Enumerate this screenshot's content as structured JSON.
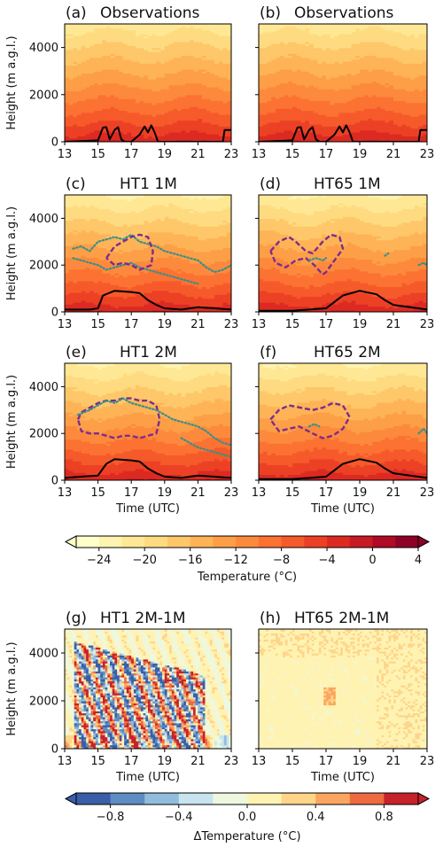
{
  "chart_data": [
    {
      "type": "heatmap",
      "panel": "a",
      "panel_label": "(a)",
      "title": "Observations",
      "ylabel": "Height (m a.g.l.)",
      "xlabel": "",
      "xlim": [
        13,
        23
      ],
      "ylim": [
        0,
        5000
      ],
      "xticks": [
        "13",
        "15",
        "17",
        "19",
        "21",
        "23"
      ],
      "yticks": [
        "0",
        "2000",
        "4000"
      ],
      "field": "Temperature (°C)",
      "surface_range": [
        -4,
        0
      ],
      "top_range": [
        -22,
        -20
      ],
      "contours": [
        {
          "style": "solid",
          "color": "#000000",
          "x": [
            13,
            14,
            15,
            15.3,
            15.5,
            15.7,
            16,
            16.2,
            16.4,
            16.6,
            17,
            17.5,
            17.8,
            18,
            18.2,
            18.4,
            18.6,
            19,
            20,
            22.5,
            22.6,
            23
          ],
          "y": [
            0,
            30,
            60,
            600,
            620,
            100,
            500,
            620,
            100,
            0,
            0,
            300,
            650,
            400,
            700,
            400,
            0,
            0,
            0,
            0,
            500,
            500
          ]
        }
      ]
    },
    {
      "type": "heatmap",
      "panel": "b",
      "panel_label": "(b)",
      "title": "Observations",
      "ylabel": "",
      "xlabel": "",
      "xlim": [
        13,
        23
      ],
      "ylim": [
        0,
        5000
      ],
      "xticks": [
        "13",
        "15",
        "17",
        "19",
        "21",
        "23"
      ],
      "yticks": [],
      "field": "Temperature (°C)",
      "surface_range": [
        -4,
        0
      ],
      "top_range": [
        -22,
        -20
      ],
      "contours": [
        {
          "style": "solid",
          "color": "#000000",
          "x": [
            13,
            14,
            15,
            15.3,
            15.5,
            15.7,
            16,
            16.2,
            16.4,
            16.6,
            17,
            17.5,
            17.8,
            18,
            18.2,
            18.4,
            18.6,
            19,
            20,
            22.5,
            22.6,
            23
          ],
          "y": [
            0,
            30,
            60,
            600,
            620,
            100,
            500,
            620,
            100,
            0,
            0,
            300,
            650,
            400,
            700,
            400,
            0,
            0,
            0,
            0,
            500,
            500
          ]
        }
      ]
    },
    {
      "type": "heatmap",
      "panel": "c",
      "panel_label": "(c)",
      "title": "HT1 1M",
      "ylabel": "Height (m a.g.l.)",
      "xlabel": "",
      "xlim": [
        13,
        23
      ],
      "ylim": [
        0,
        5000
      ],
      "xticks": [
        "13",
        "15",
        "17",
        "19",
        "21",
        "23"
      ],
      "yticks": [
        "0",
        "2000",
        "4000"
      ],
      "field": "Temperature (°C)",
      "surface_range": [
        -4,
        0
      ],
      "top_range": [
        -24,
        -20
      ],
      "contours": [
        {
          "style": "solid",
          "color": "#000000",
          "x": [
            13,
            14.5,
            15,
            15.3,
            16,
            17,
            17.5,
            18,
            18.5,
            19,
            20,
            21,
            22,
            23
          ],
          "y": [
            100,
            100,
            150,
            700,
            900,
            850,
            800,
            500,
            300,
            150,
            100,
            200,
            150,
            100
          ]
        },
        {
          "style": "dotted",
          "color": "#3a8f8a",
          "x": [
            13.5,
            14,
            14.5,
            15,
            15.5,
            16,
            16.5,
            17,
            17.5,
            18,
            18.5,
            19,
            19.5,
            20,
            20.5,
            21,
            21.5,
            22,
            22.5,
            23
          ],
          "y": [
            2700,
            2800,
            2600,
            3000,
            3100,
            3200,
            3100,
            3300,
            3000,
            2900,
            2800,
            2600,
            2500,
            2400,
            2300,
            2200,
            1900,
            1700,
            1800,
            2000
          ]
        },
        {
          "style": "dotted",
          "color": "#3a8f8a",
          "x": [
            13.5,
            14,
            14.5,
            15,
            15.5,
            16,
            16.5,
            17,
            17.5,
            18,
            18.5,
            19,
            19.5,
            20,
            20.5,
            21
          ],
          "y": [
            2300,
            2200,
            2100,
            2000,
            1800,
            1900,
            2000,
            2100,
            1900,
            1800,
            1700,
            1600,
            1500,
            1400,
            1300,
            1200
          ]
        },
        {
          "style": "dashed",
          "color": "#7b2d8e",
          "x": [
            15.5,
            16,
            16.5,
            17,
            17.5,
            18,
            18.3,
            18.2,
            17.5,
            17,
            16.5,
            16,
            15.5
          ],
          "y": [
            2300,
            2800,
            3000,
            3200,
            3300,
            3200,
            2600,
            2000,
            1800,
            2000,
            2100,
            2000,
            2300
          ]
        }
      ]
    },
    {
      "type": "heatmap",
      "panel": "d",
      "panel_label": "(d)",
      "title": "HT65 1M",
      "ylabel": "",
      "xlabel": "",
      "xlim": [
        13,
        23
      ],
      "ylim": [
        0,
        5000
      ],
      "xticks": [
        "13",
        "15",
        "17",
        "19",
        "21",
        "23"
      ],
      "yticks": [],
      "field": "Temperature (°C)",
      "surface_range": [
        -4,
        0
      ],
      "top_range": [
        -24,
        -20
      ],
      "contours": [
        {
          "style": "solid",
          "color": "#000000",
          "x": [
            13,
            15,
            16,
            17,
            18,
            19,
            20,
            20.5,
            21,
            22,
            23
          ],
          "y": [
            50,
            50,
            100,
            150,
            700,
            900,
            750,
            500,
            300,
            200,
            100
          ]
        },
        {
          "style": "dashed",
          "color": "#7b2d8e",
          "x": [
            13.7,
            14.2,
            14.8,
            15.2,
            15.8,
            16.2,
            16.8,
            17.3,
            17.8,
            18,
            17.5,
            17,
            16.8,
            16.3,
            15.8,
            15.2,
            14.6,
            14,
            13.7
          ],
          "y": [
            2600,
            3000,
            3200,
            3000,
            2600,
            2500,
            3000,
            3300,
            3200,
            2700,
            2200,
            1700,
            1600,
            2000,
            2300,
            2200,
            1900,
            2100,
            2600
          ]
        },
        {
          "style": "dotted",
          "color": "#3a8f8a",
          "x": [
            16,
            16.4,
            16.8,
            17
          ],
          "y": [
            2200,
            2300,
            2200,
            2300
          ]
        },
        {
          "style": "dotted",
          "color": "#3a8f8a",
          "x": [
            20.5,
            20.7
          ],
          "y": [
            2400,
            2500
          ]
        },
        {
          "style": "dotted",
          "color": "#3a8f8a",
          "x": [
            22.5,
            22.8,
            23
          ],
          "y": [
            2000,
            2100,
            2000
          ]
        }
      ]
    },
    {
      "type": "heatmap",
      "panel": "e",
      "panel_label": "(e)",
      "title": "HT1 2M",
      "ylabel": "Height (m a.g.l.)",
      "xlabel": "Time (UTC)",
      "xlim": [
        13,
        23
      ],
      "ylim": [
        0,
        5000
      ],
      "xticks": [
        "13",
        "15",
        "17",
        "19",
        "21",
        "23"
      ],
      "yticks": [
        "0",
        "2000",
        "4000"
      ],
      "field": "Temperature (°C)",
      "surface_range": [
        -4,
        0
      ],
      "top_range": [
        -24,
        -20
      ],
      "contours": [
        {
          "style": "solid",
          "color": "#000000",
          "x": [
            13,
            14,
            15,
            15.5,
            16,
            17,
            17.5,
            18,
            18.5,
            19,
            20,
            21,
            22,
            23
          ],
          "y": [
            100,
            150,
            200,
            700,
            900,
            850,
            800,
            500,
            300,
            150,
            100,
            200,
            150,
            100
          ]
        },
        {
          "style": "dashed",
          "color": "#7b2d8e",
          "x": [
            13.8,
            14,
            14.5,
            15,
            15.5,
            16,
            16.5,
            17,
            17.5,
            18,
            18.5,
            18.7,
            18.5,
            18,
            17.5,
            17,
            16.5,
            16,
            15.5,
            15,
            14.5,
            14,
            13.8
          ],
          "y": [
            2600,
            2900,
            3100,
            3300,
            3400,
            3400,
            3500,
            3500,
            3400,
            3400,
            3200,
            2600,
            2000,
            1900,
            1800,
            1900,
            1900,
            1800,
            1900,
            2000,
            2000,
            2100,
            2600
          ]
        },
        {
          "style": "dotted",
          "color": "#3a8f8a",
          "x": [
            13.8,
            14.5,
            15,
            15.5,
            16,
            16.5,
            17,
            17.5,
            18,
            18.5,
            19,
            19.5,
            20,
            20.5,
            21,
            21.5,
            22,
            22.5,
            23
          ],
          "y": [
            2800,
            3000,
            3200,
            3400,
            3300,
            3500,
            3300,
            3200,
            3100,
            3000,
            2800,
            2600,
            2500,
            2400,
            2300,
            2100,
            1800,
            1600,
            1500
          ]
        },
        {
          "style": "dotted",
          "color": "#3a8f8a",
          "x": [
            20,
            20.5,
            21,
            21.5,
            22,
            22.5,
            23
          ],
          "y": [
            1800,
            1600,
            1400,
            1300,
            1200,
            1100,
            1000
          ]
        }
      ]
    },
    {
      "type": "heatmap",
      "panel": "f",
      "panel_label": "(f)",
      "title": "HT65 2M",
      "ylabel": "",
      "xlabel": "Time (UTC)",
      "xlim": [
        13,
        23
      ],
      "ylim": [
        0,
        5000
      ],
      "xticks": [
        "13",
        "15",
        "17",
        "19",
        "21",
        "23"
      ],
      "yticks": [],
      "field": "Temperature (°C)",
      "surface_range": [
        -4,
        0
      ],
      "top_range": [
        -24,
        -20
      ],
      "contours": [
        {
          "style": "solid",
          "color": "#000000",
          "x": [
            13,
            15,
            16,
            17,
            18,
            19,
            20,
            20.5,
            21,
            22,
            23
          ],
          "y": [
            50,
            50,
            100,
            150,
            700,
            900,
            750,
            500,
            300,
            200,
            100
          ]
        },
        {
          "style": "dashed",
          "color": "#7b2d8e",
          "x": [
            13.7,
            14.2,
            14.8,
            15.5,
            16.2,
            16.8,
            17.4,
            18,
            18.4,
            18,
            17.4,
            16.8,
            16.2,
            15.4,
            14.8,
            14.2,
            13.7
          ],
          "y": [
            2600,
            3000,
            3200,
            3100,
            3000,
            3100,
            3300,
            3200,
            2700,
            2200,
            1900,
            1800,
            2000,
            2300,
            2200,
            2100,
            2600
          ]
        },
        {
          "style": "dotted",
          "color": "#3a8f8a",
          "x": [
            16,
            16.3,
            16.6
          ],
          "y": [
            2300,
            2400,
            2300
          ]
        },
        {
          "style": "dotted",
          "color": "#3a8f8a",
          "x": [
            22.5,
            22.8,
            23
          ],
          "y": [
            2000,
            2200,
            2000
          ]
        }
      ]
    },
    {
      "type": "heatmap",
      "panel": "g",
      "panel_label": "(g)",
      "title": "HT1 2M-1M",
      "ylabel": "Height (m a.g.l.)",
      "xlabel": "Time (UTC)",
      "xlim": [
        13,
        23
      ],
      "ylim": [
        0,
        5000
      ],
      "xticks": [
        "13",
        "15",
        "17",
        "19",
        "21",
        "23"
      ],
      "yticks": [
        "0",
        "2000",
        "4000"
      ],
      "field": "ΔTemperature (°C)",
      "value_range": [
        -1.0,
        1.0
      ]
    },
    {
      "type": "heatmap",
      "panel": "h",
      "panel_label": "(h)",
      "title": "HT65 2M-1M",
      "ylabel": "",
      "xlabel": "Time (UTC)",
      "xlim": [
        13,
        23
      ],
      "ylim": [
        0,
        5000
      ],
      "xticks": [
        "13",
        "15",
        "17",
        "19",
        "21",
        "23"
      ],
      "yticks": [],
      "field": "ΔTemperature (°C)",
      "value_range": [
        -0.2,
        0.4
      ]
    }
  ],
  "colorbars": [
    {
      "label": "Temperature (°C)",
      "ticks": [
        "−24",
        "−20",
        "−16",
        "−12",
        "−8",
        "−4",
        "0",
        "4"
      ],
      "tick_values": [
        -24,
        -20,
        -16,
        -12,
        -8,
        -4,
        0,
        4
      ],
      "levels": [
        -26,
        -24,
        -22,
        -20,
        -18,
        -16,
        -14,
        -12,
        -10,
        -8,
        -6,
        -4,
        -2,
        0,
        2,
        4
      ],
      "colors": [
        "#ffffcc",
        "#fff3b0",
        "#ffe895",
        "#fedb80",
        "#fec76a",
        "#feb456",
        "#fd9f47",
        "#fd8a3c",
        "#fc7232",
        "#f65a2a",
        "#ec4125",
        "#dc2a22",
        "#c81a24",
        "#b00a26",
        "#8e0026"
      ],
      "extend": "both"
    },
    {
      "label": "ΔTemperature (°C)",
      "ticks": [
        "−0.8",
        "−0.4",
        "0.0",
        "0.4",
        "0.8"
      ],
      "tick_values": [
        -0.8,
        -0.4,
        0.0,
        0.4,
        0.8
      ],
      "levels": [
        -1.0,
        -0.8,
        -0.6,
        -0.4,
        -0.2,
        0.0,
        0.2,
        0.4,
        0.6,
        0.8,
        1.0
      ],
      "colors": [
        "#3a5ea8",
        "#5f8cc2",
        "#92bcdb",
        "#c7e4ef",
        "#eef8df",
        "#fff3b3",
        "#fed589",
        "#fca560",
        "#ee6a40",
        "#c6222a"
      ],
      "extend": "both"
    }
  ]
}
